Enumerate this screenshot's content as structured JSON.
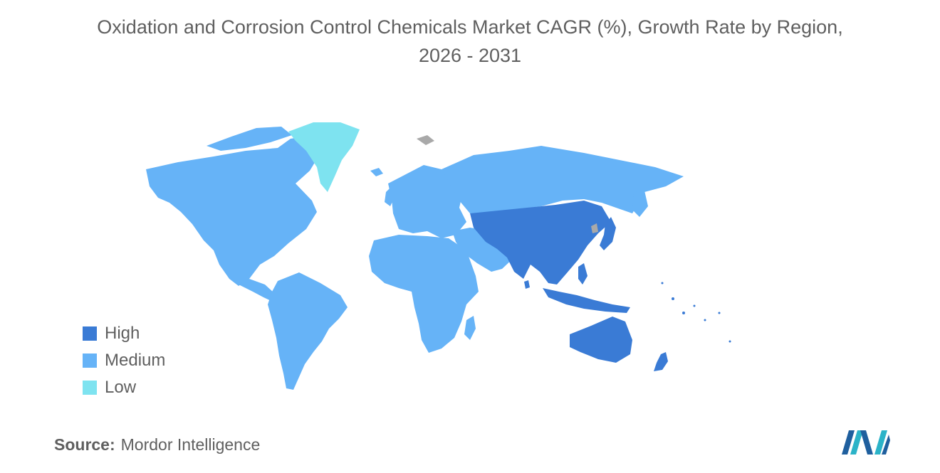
{
  "title": {
    "line1": "Oxidation and Corrosion Control Chemicals Market CAGR (%), Growth Rate by Region,",
    "line2": "2026 - 2031"
  },
  "legend": [
    {
      "label": "High",
      "color": "#3a7bd5"
    },
    {
      "label": "Medium",
      "color": "#66b3f7"
    },
    {
      "label": "Low",
      "color": "#7ee3f0"
    }
  ],
  "colors": {
    "high": "#3a7bd5",
    "medium": "#66b3f7",
    "low": "#7ee3f0",
    "no_data": "#a9a9a9"
  },
  "regions": {
    "North America": "Medium",
    "South America": "Medium",
    "Europe": "Medium",
    "Middle East and Africa": "Medium",
    "Asia-Pacific": "High",
    "Greenland": "Low"
  },
  "source": {
    "label": "Source:",
    "text": "Mordor Intelligence"
  }
}
